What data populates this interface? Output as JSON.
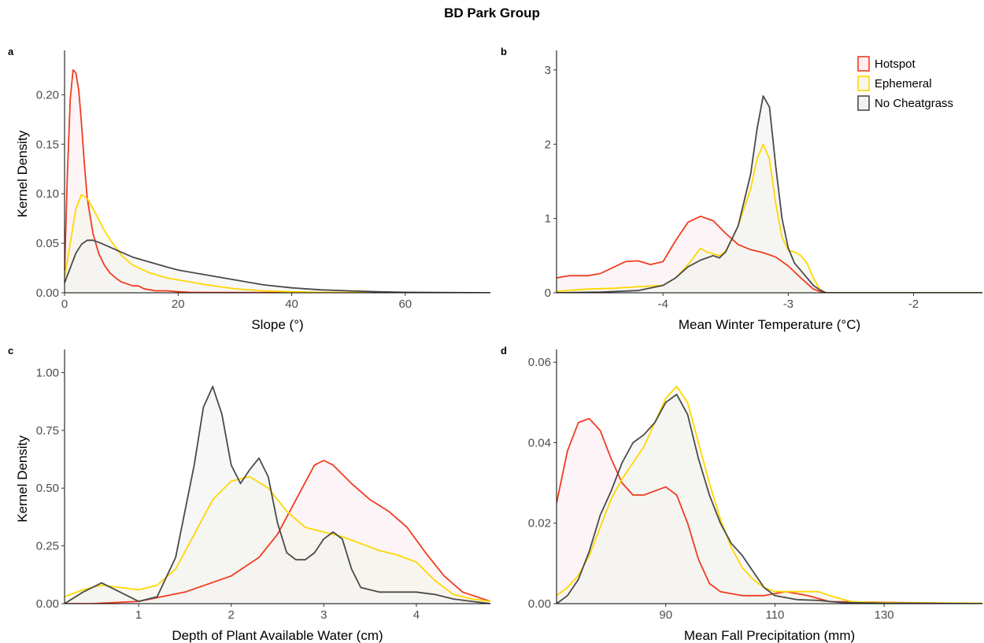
{
  "figure_title": "BD Park Group",
  "legend": {
    "items": [
      {
        "label": "Hotspot",
        "color": "#f03c21",
        "fill": "#fceef2"
      },
      {
        "label": "Ephemeral",
        "color": "#ffd700",
        "fill": "#f6f6ea"
      },
      {
        "label": "No Cheatgrass",
        "color": "#4a4a4a",
        "fill": "#f3f3f3"
      }
    ]
  },
  "chart_data": [
    {
      "panel": "a",
      "type": "area",
      "xlabel": "Slope (°)",
      "ylabel": "Kernel Density",
      "xlim": [
        0,
        75
      ],
      "ylim": [
        0,
        0.24
      ],
      "xticks": [
        0,
        20,
        40,
        60
      ],
      "xtick_labels": [
        "0",
        "20",
        "40",
        "60"
      ],
      "yticks": [
        0,
        0.05,
        0.1,
        0.15,
        0.2
      ],
      "ytick_labels": [
        "0.00",
        "0.05",
        "0.10",
        "0.15",
        "0.20"
      ],
      "series": [
        {
          "name": "Hotspot",
          "x": [
            0,
            0.5,
            1,
            1.5,
            2,
            2.5,
            3,
            3.5,
            4,
            5,
            6,
            7,
            8,
            9,
            10,
            11,
            12,
            13,
            14,
            15,
            16,
            18,
            20,
            22,
            25,
            75
          ],
          "y": [
            0.02,
            0.12,
            0.195,
            0.225,
            0.222,
            0.205,
            0.17,
            0.13,
            0.095,
            0.06,
            0.04,
            0.028,
            0.02,
            0.015,
            0.011,
            0.009,
            0.007,
            0.007,
            0.004,
            0.003,
            0.002,
            0.002,
            0.001,
            0.0005,
            0.0002,
            0
          ]
        },
        {
          "name": "Ephemeral",
          "x": [
            0,
            1,
            2,
            3,
            4,
            5,
            6,
            7,
            8,
            10,
            12,
            15,
            18,
            20,
            25,
            30,
            35,
            40,
            45,
            50,
            60,
            75
          ],
          "y": [
            0.015,
            0.05,
            0.085,
            0.099,
            0.095,
            0.085,
            0.074,
            0.063,
            0.054,
            0.038,
            0.028,
            0.02,
            0.015,
            0.013,
            0.008,
            0.004,
            0.002,
            0.001,
            0.0005,
            0.0002,
            0.0001,
            0
          ]
        },
        {
          "name": "No Cheatgrass",
          "x": [
            0,
            1,
            2,
            3,
            4,
            5,
            6,
            8,
            10,
            12,
            15,
            18,
            20,
            25,
            30,
            35,
            40,
            45,
            50,
            55,
            60,
            65,
            75
          ],
          "y": [
            0.01,
            0.025,
            0.04,
            0.049,
            0.053,
            0.053,
            0.051,
            0.046,
            0.041,
            0.036,
            0.031,
            0.026,
            0.023,
            0.018,
            0.013,
            0.008,
            0.005,
            0.003,
            0.002,
            0.001,
            0.0005,
            0.0002,
            0
          ]
        }
      ]
    },
    {
      "panel": "b",
      "type": "area",
      "xlabel": "Mean Winter Temperature (°C)",
      "ylabel": "",
      "xlim": [
        -4.85,
        -1.45
      ],
      "ylim": [
        0,
        3.2
      ],
      "xticks": [
        -4,
        -3,
        -2
      ],
      "xtick_labels": [
        "-4",
        "-3",
        "-2"
      ],
      "yticks": [
        0,
        1,
        2,
        3
      ],
      "ytick_labels": [
        "0",
        "1",
        "2",
        "3"
      ],
      "series": [
        {
          "name": "Hotspot",
          "x": [
            -4.85,
            -4.75,
            -4.6,
            -4.5,
            -4.4,
            -4.3,
            -4.2,
            -4.1,
            -4.0,
            -3.9,
            -3.8,
            -3.7,
            -3.6,
            -3.5,
            -3.4,
            -3.3,
            -3.2,
            -3.1,
            -3.0,
            -2.9,
            -2.8,
            -2.75,
            -2.7,
            -1.45
          ],
          "y": [
            0.2,
            0.23,
            0.23,
            0.26,
            0.34,
            0.42,
            0.43,
            0.38,
            0.42,
            0.7,
            0.95,
            1.03,
            0.97,
            0.8,
            0.65,
            0.58,
            0.54,
            0.48,
            0.36,
            0.2,
            0.05,
            0.02,
            0,
            0
          ]
        },
        {
          "name": "Ephemeral",
          "x": [
            -4.85,
            -4.6,
            -4.4,
            -4.2,
            -4.0,
            -3.9,
            -3.8,
            -3.7,
            -3.65,
            -3.55,
            -3.5,
            -3.4,
            -3.3,
            -3.25,
            -3.2,
            -3.15,
            -3.1,
            -3.05,
            -3.0,
            -2.95,
            -2.9,
            -2.85,
            -2.8,
            -2.75,
            -2.7,
            -1.45
          ],
          "y": [
            0.02,
            0.05,
            0.06,
            0.08,
            0.1,
            0.2,
            0.38,
            0.6,
            0.55,
            0.5,
            0.56,
            0.9,
            1.4,
            1.8,
            2.0,
            1.8,
            1.2,
            0.75,
            0.57,
            0.55,
            0.5,
            0.4,
            0.2,
            0.05,
            0,
            0
          ]
        },
        {
          "name": "No Cheatgrass",
          "x": [
            -4.85,
            -4.5,
            -4.2,
            -4.0,
            -3.9,
            -3.8,
            -3.7,
            -3.6,
            -3.55,
            -3.5,
            -3.4,
            -3.3,
            -3.25,
            -3.2,
            -3.15,
            -3.1,
            -3.05,
            -3.0,
            -2.95,
            -2.9,
            -2.85,
            -2.8,
            -2.75,
            -2.7,
            -1.45
          ],
          "y": [
            0,
            0.01,
            0.03,
            0.1,
            0.2,
            0.35,
            0.44,
            0.5,
            0.47,
            0.55,
            0.9,
            1.6,
            2.2,
            2.65,
            2.5,
            1.7,
            1.0,
            0.6,
            0.4,
            0.3,
            0.2,
            0.1,
            0.04,
            0,
            0
          ]
        }
      ]
    },
    {
      "panel": "c",
      "type": "area",
      "xlabel": "Depth of Plant Available Water (cm)",
      "ylabel": "Kernel Density",
      "xlim": [
        0.2,
        4.8
      ],
      "ylim": [
        0,
        1.08
      ],
      "xticks": [
        1,
        2,
        3,
        4
      ],
      "xtick_labels": [
        "1",
        "2",
        "3",
        "4"
      ],
      "yticks": [
        0,
        0.25,
        0.5,
        0.75,
        1.0
      ],
      "ytick_labels": [
        "0.00",
        "0.25",
        "0.50",
        "0.75",
        "1.00"
      ],
      "series": [
        {
          "name": "Hotspot",
          "x": [
            0.2,
            0.5,
            1.0,
            1.5,
            2.0,
            2.3,
            2.5,
            2.7,
            2.9,
            3.0,
            3.1,
            3.3,
            3.5,
            3.7,
            3.9,
            4.1,
            4.3,
            4.5,
            4.8
          ],
          "y": [
            0,
            0,
            0.01,
            0.05,
            0.12,
            0.2,
            0.3,
            0.45,
            0.6,
            0.62,
            0.6,
            0.52,
            0.45,
            0.4,
            0.33,
            0.22,
            0.12,
            0.05,
            0.01
          ]
        },
        {
          "name": "Ephemeral",
          "x": [
            0.2,
            0.4,
            0.6,
            0.8,
            1.0,
            1.2,
            1.4,
            1.6,
            1.8,
            2.0,
            2.2,
            2.4,
            2.6,
            2.8,
            3.0,
            3.2,
            3.4,
            3.6,
            3.8,
            4.0,
            4.2,
            4.4,
            4.6,
            4.8
          ],
          "y": [
            0.03,
            0.06,
            0.08,
            0.07,
            0.06,
            0.08,
            0.15,
            0.3,
            0.45,
            0.53,
            0.55,
            0.5,
            0.4,
            0.33,
            0.31,
            0.29,
            0.26,
            0.23,
            0.21,
            0.18,
            0.1,
            0.04,
            0.02,
            0.01
          ]
        },
        {
          "name": "No Cheatgrass",
          "x": [
            0.2,
            0.4,
            0.6,
            0.8,
            1.0,
            1.2,
            1.4,
            1.6,
            1.7,
            1.8,
            1.9,
            2.0,
            2.1,
            2.2,
            2.3,
            2.4,
            2.5,
            2.6,
            2.7,
            2.8,
            2.9,
            3.0,
            3.1,
            3.2,
            3.3,
            3.4,
            3.6,
            3.8,
            4.0,
            4.2,
            4.4,
            4.6,
            4.8
          ],
          "y": [
            0,
            0.05,
            0.09,
            0.05,
            0.01,
            0.03,
            0.2,
            0.6,
            0.85,
            0.94,
            0.82,
            0.6,
            0.52,
            0.58,
            0.63,
            0.55,
            0.35,
            0.22,
            0.19,
            0.19,
            0.22,
            0.28,
            0.31,
            0.28,
            0.15,
            0.07,
            0.05,
            0.05,
            0.05,
            0.04,
            0.02,
            0.01,
            0
          ]
        }
      ]
    },
    {
      "panel": "d",
      "type": "area",
      "xlabel": "Mean Fall Precipitation (mm)",
      "ylabel": "",
      "xlim": [
        70,
        148
      ],
      "ylim": [
        0,
        0.062
      ],
      "xticks": [
        90,
        110,
        130
      ],
      "xtick_labels": [
        "90",
        "110",
        "130"
      ],
      "yticks": [
        0,
        0.02,
        0.04,
        0.06
      ],
      "ytick_labels": [
        "0.00",
        "0.02",
        "0.04",
        "0.06"
      ],
      "series": [
        {
          "name": "Hotspot",
          "x": [
            70,
            72,
            74,
            76,
            78,
            80,
            82,
            84,
            86,
            88,
            90,
            92,
            94,
            96,
            98,
            100,
            104,
            108,
            112,
            116,
            120,
            148
          ],
          "y": [
            0.025,
            0.038,
            0.045,
            0.046,
            0.043,
            0.036,
            0.03,
            0.027,
            0.027,
            0.028,
            0.029,
            0.027,
            0.02,
            0.011,
            0.005,
            0.003,
            0.002,
            0.002,
            0.003,
            0.002,
            0.0005,
            0
          ]
        },
        {
          "name": "Ephemeral",
          "x": [
            70,
            72,
            74,
            76,
            78,
            80,
            82,
            84,
            86,
            88,
            90,
            92,
            94,
            96,
            98,
            100,
            102,
            104,
            106,
            108,
            110,
            114,
            118,
            120,
            124,
            128,
            135,
            148
          ],
          "y": [
            0.002,
            0.004,
            0.007,
            0.012,
            0.019,
            0.026,
            0.031,
            0.035,
            0.039,
            0.045,
            0.051,
            0.054,
            0.05,
            0.04,
            0.03,
            0.021,
            0.014,
            0.009,
            0.006,
            0.004,
            0.003,
            0.003,
            0.003,
            0.002,
            0.0005,
            0.0003,
            0.0002,
            0.0001
          ]
        },
        {
          "name": "No Cheatgrass",
          "x": [
            70,
            72,
            74,
            76,
            78,
            80,
            82,
            84,
            86,
            88,
            90,
            92,
            94,
            96,
            98,
            100,
            102,
            104,
            106,
            108,
            110,
            114,
            118,
            122,
            130,
            148
          ],
          "y": [
            0,
            0.002,
            0.006,
            0.013,
            0.022,
            0.028,
            0.035,
            0.04,
            0.042,
            0.045,
            0.05,
            0.052,
            0.047,
            0.036,
            0.027,
            0.02,
            0.015,
            0.012,
            0.008,
            0.004,
            0.002,
            0.001,
            0.0008,
            0.0003,
            0.0001,
            0
          ]
        }
      ]
    }
  ]
}
